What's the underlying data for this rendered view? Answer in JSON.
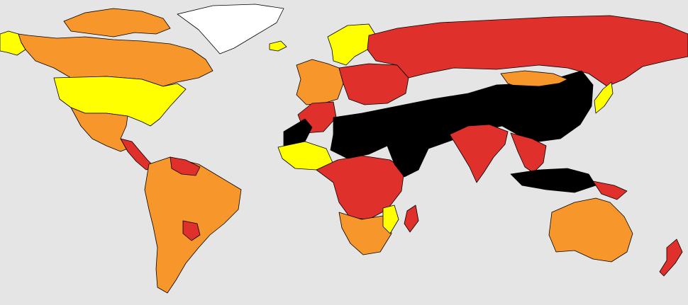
{
  "map": {
    "background": "#e5e5e5",
    "legend_colors": {
      "very_low": "#7fdc58",
      "low": "#ffff00",
      "moderate": "#f7962a",
      "high": "#e0302b",
      "extreme": "#000000"
    },
    "regions": [
      {
        "id": "alaska",
        "level": "low"
      },
      {
        "id": "canada",
        "level": "moderate"
      },
      {
        "id": "canadian-arctic",
        "level": "moderate"
      },
      {
        "id": "greenland",
        "level": "none"
      },
      {
        "id": "usa",
        "level": "low"
      },
      {
        "id": "mexico",
        "level": "moderate"
      },
      {
        "id": "central-america",
        "level": "high"
      },
      {
        "id": "south-america",
        "level": "moderate"
      },
      {
        "id": "venezuela",
        "level": "high"
      },
      {
        "id": "paraguay",
        "level": "high"
      },
      {
        "id": "iceland",
        "level": "low"
      },
      {
        "id": "scandinavia",
        "level": "low"
      },
      {
        "id": "western-europe",
        "level": "moderate"
      },
      {
        "id": "eastern-europe",
        "level": "high"
      },
      {
        "id": "russia",
        "level": "high"
      },
      {
        "id": "north-africa-west",
        "level": "high"
      },
      {
        "id": "western-sahara",
        "level": "extreme"
      },
      {
        "id": "sahel-middle-east-asia",
        "level": "extreme"
      },
      {
        "id": "west-africa",
        "level": "low"
      },
      {
        "id": "central-east-africa",
        "level": "high"
      },
      {
        "id": "horn-of-africa",
        "level": "extreme"
      },
      {
        "id": "southern-africa",
        "level": "moderate"
      },
      {
        "id": "mozambique",
        "level": "low"
      },
      {
        "id": "madagascar",
        "level": "high"
      },
      {
        "id": "india-region",
        "level": "high"
      },
      {
        "id": "china",
        "level": "extreme"
      },
      {
        "id": "mongolia",
        "level": "moderate"
      },
      {
        "id": "southeast-asia",
        "level": "high"
      },
      {
        "id": "indonesia",
        "level": "extreme"
      },
      {
        "id": "japan",
        "level": "low"
      },
      {
        "id": "papua",
        "level": "high"
      },
      {
        "id": "australia",
        "level": "moderate"
      },
      {
        "id": "new-zealand",
        "level": "high"
      }
    ]
  }
}
